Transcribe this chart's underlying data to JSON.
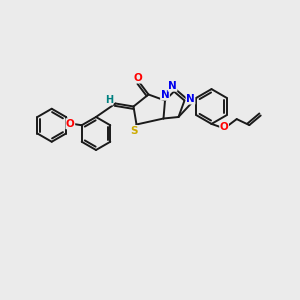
{
  "background_color": "#ebebeb",
  "bond_color": "#1a1a1a",
  "atom_colors": {
    "O": "#ff0000",
    "N": "#0000ee",
    "S": "#ccaa00",
    "H": "#008080",
    "C": "#1a1a1a"
  },
  "figsize": [
    3.0,
    3.0
  ],
  "dpi": 100,
  "lw": 1.4,
  "ring_lw": 1.4,
  "font_size": 7.5
}
